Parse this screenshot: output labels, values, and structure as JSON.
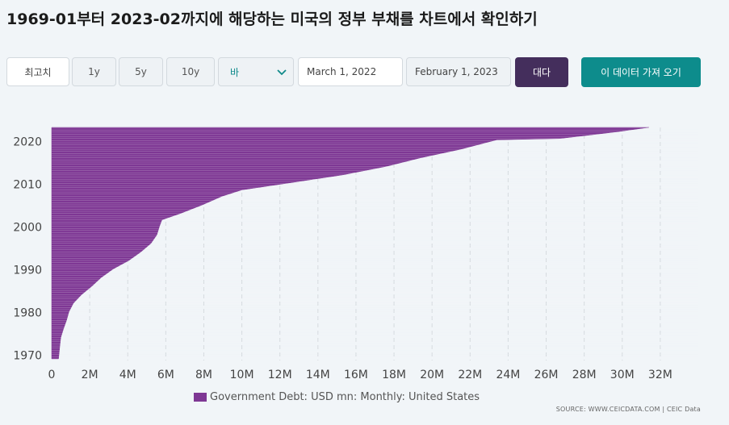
{
  "title": "1969-01부터 2023-02까지에 해당하는 미국의 정부 부채를 차트에서 확인하기",
  "controls": {
    "range_buttons": [
      "최고치",
      "1y",
      "5y",
      "10y"
    ],
    "chart_type": "바",
    "start_date": "March 1, 2022",
    "end_date": "February 1, 2023",
    "compare_label": "대다",
    "get_data_label": "이 데이터 가져 오기"
  },
  "colors": {
    "series": "#7e3794",
    "dark_button": "#442e5c",
    "teal_button": "#0d8c8c"
  },
  "legend_label": "Government Debt: USD mn: Monthly: United States",
  "source": "SOURCE: WWW.CEICDATA.COM | CEIC Data",
  "chart_data": {
    "type": "bar",
    "orientation": "horizontal",
    "title": "",
    "xlabel": "",
    "ylabel": "",
    "x_unit": "USD mn",
    "xlim": [
      0,
      34000000
    ],
    "x_ticks": [
      0,
      2000000,
      4000000,
      6000000,
      8000000,
      10000000,
      12000000,
      14000000,
      16000000,
      18000000,
      20000000,
      22000000,
      24000000,
      26000000,
      28000000,
      30000000,
      32000000
    ],
    "x_tick_labels": [
      "0",
      "2M",
      "4M",
      "6M",
      "8M",
      "10M",
      "12M",
      "14M",
      "16M",
      "18M",
      "20M",
      "22M",
      "24M",
      "26M",
      "28M",
      "30M",
      "32M"
    ],
    "y_range": [
      1969,
      2023.1
    ],
    "y_ticks": [
      1970,
      1980,
      1990,
      2000,
      2010,
      2020
    ],
    "y_tick_labels": [
      "1970",
      "1980",
      "1990",
      "2000",
      "2010",
      "2020"
    ],
    "grid": "vertical",
    "series": [
      {
        "name": "Government Debt: USD mn: Monthly: United States",
        "points": [
          [
            1969.0,
            360000
          ],
          [
            1972.0,
            430000
          ],
          [
            1974.0,
            480000
          ],
          [
            1976.0,
            620000
          ],
          [
            1978.0,
            780000
          ],
          [
            1980.0,
            910000
          ],
          [
            1982.0,
            1140000
          ],
          [
            1984.0,
            1570000
          ],
          [
            1986.0,
            2120000
          ],
          [
            1988.0,
            2600000
          ],
          [
            1990.0,
            3230000
          ],
          [
            1992.0,
            4060000
          ],
          [
            1994.0,
            4690000
          ],
          [
            1996.0,
            5220000
          ],
          [
            1998.0,
            5530000
          ],
          [
            2000.0,
            5670000
          ],
          [
            2001.5,
            5800000
          ],
          [
            2003.0,
            6780000
          ],
          [
            2005.0,
            7930000
          ],
          [
            2007.0,
            8950000
          ],
          [
            2008.5,
            10000000
          ],
          [
            2010.0,
            12300000
          ],
          [
            2012.0,
            15300000
          ],
          [
            2014.0,
            17600000
          ],
          [
            2016.0,
            19400000
          ],
          [
            2018.0,
            21500000
          ],
          [
            2019.5,
            22800000
          ],
          [
            2020.2,
            23400000
          ],
          [
            2020.5,
            26700000
          ],
          [
            2021.0,
            27700000
          ],
          [
            2022.0,
            29600000
          ],
          [
            2023.1,
            31400000
          ]
        ]
      }
    ]
  }
}
